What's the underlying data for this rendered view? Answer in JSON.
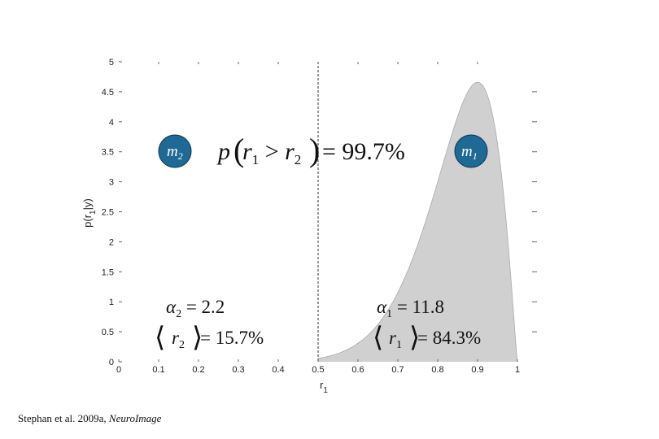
{
  "chart_data": {
    "type": "area",
    "xlabel": "r",
    "xlabel_sub": "1",
    "ylabel": "p(r",
    "ylabel_sub": "1",
    "ylabel_tail": "|y)",
    "xlim": [
      0,
      1
    ],
    "ylim": [
      0,
      5
    ],
    "x_ticks": [
      "0",
      "0.1",
      "0.2",
      "0.3",
      "0.4",
      "0.5",
      "0.6",
      "0.7",
      "0.8",
      "0.9",
      "1"
    ],
    "y_ticks": [
      "0",
      "0.5",
      "1",
      "1.5",
      "2",
      "2.5",
      "3",
      "3.5",
      "4",
      "4.5",
      "5"
    ],
    "grid": false,
    "threshold_x": 0.5,
    "series": [
      {
        "distribution": "beta",
        "alpha1": 11.8,
        "alpha2": 2.2,
        "shaded_from": 0.5,
        "shaded_to": 1.0,
        "fill_color": "#d0d0d0"
      }
    ]
  },
  "annotations": {
    "m2_label": "m",
    "m2_sub": "2",
    "m1_label": "m",
    "m1_sub": "1",
    "prob_prefix": "p",
    "prob_r1": "r",
    "prob_r1_sub": "1",
    "prob_gt": " > ",
    "prob_r2": "r",
    "prob_r2_sub": "2",
    "prob_value": "= 99.7%",
    "alpha2_symbol": "α",
    "alpha2_sub": "2",
    "alpha2_value": " = 2.2",
    "r2_symbol": "r",
    "r2_sub": "2",
    "r2_value": " = 15.7%",
    "alpha1_symbol": "α",
    "alpha1_sub": "1",
    "alpha1_value": " = 11.8",
    "r1_symbol": "r",
    "r1_sub": "1",
    "r1_value": " = 84.3%"
  },
  "colors": {
    "badge_fill": "#1f6a94",
    "badge_stroke": "#0d3550",
    "area_fill": "#d0d0d0",
    "threshold_line": "#555555"
  },
  "citation": {
    "text": "Stephan et al. 2009a, ",
    "journal": "NeuroImage"
  }
}
